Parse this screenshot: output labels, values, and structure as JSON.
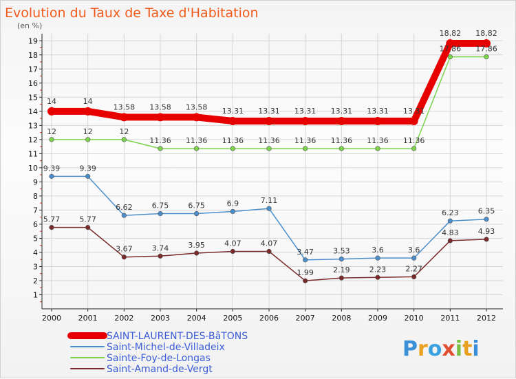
{
  "chart_data": {
    "type": "line",
    "title": "Evolution du Taux de Taxe d'Habitation",
    "subtitle": "(en %)",
    "x": [
      "2000",
      "2001",
      "2002",
      "2003",
      "2004",
      "2005",
      "2006",
      "2007",
      "2008",
      "2009",
      "2010",
      "2011",
      "2012"
    ],
    "ylim": [
      0,
      19.5
    ],
    "yticks": [
      1,
      2,
      3,
      4,
      5,
      6,
      7,
      8,
      9,
      10,
      11,
      12,
      13,
      14,
      15,
      16,
      17,
      18,
      19
    ],
    "grid": true,
    "legend_position": "bottom-left",
    "series": [
      {
        "name": "SAINT-LAURENT-DES-BâTONS",
        "color": "#e60000",
        "values": [
          14,
          14,
          13.58,
          13.58,
          13.58,
          13.31,
          13.31,
          13.31,
          13.31,
          13.31,
          13.31,
          18.82,
          18.82
        ],
        "labels": [
          "14",
          "14",
          "13.58",
          "13.58",
          "13.58",
          "13.31",
          "13.31",
          "13.31",
          "13.31",
          "13.31",
          "13.31",
          "18.82",
          "18.82"
        ]
      },
      {
        "name": "Saint-Michel-de-Villadeix",
        "color": "#4a8fcc",
        "values": [
          9.39,
          9.39,
          6.62,
          6.75,
          6.75,
          6.9,
          7.11,
          3.47,
          3.53,
          3.6,
          3.6,
          6.23,
          6.35
        ],
        "labels": [
          "9.39",
          "9.39",
          "6.62",
          "6.75",
          "6.75",
          "6.9",
          "7.11",
          "3.47",
          "3.53",
          "3.6",
          "3.6",
          "6.23",
          "6.35"
        ]
      },
      {
        "name": "Sainte-Foy-de-Longas",
        "color": "#7bd44a",
        "values": [
          12,
          12,
          12,
          11.36,
          11.36,
          11.36,
          11.36,
          11.36,
          11.36,
          11.36,
          11.36,
          17.86,
          17.86
        ],
        "labels": [
          "12",
          "12",
          "12",
          "11.36",
          "11.36",
          "11.36",
          "11.36",
          "11.36",
          "11.36",
          "11.36",
          "11.36",
          "17.86",
          "17.86"
        ]
      },
      {
        "name": "Saint-Amand-de-Vergt",
        "color": "#7a2a2a",
        "values": [
          5.77,
          5.77,
          3.67,
          3.74,
          3.95,
          4.07,
          4.07,
          1.99,
          2.19,
          2.23,
          2.27,
          4.83,
          4.93
        ],
        "labels": [
          "5.77",
          "5.77",
          "3.67",
          "3.74",
          "3.95",
          "4.07",
          "4.07",
          "1.99",
          "2.19",
          "2.23",
          "2.27",
          "4.83",
          "4.93"
        ]
      }
    ]
  },
  "logo_text": "Proxiti"
}
